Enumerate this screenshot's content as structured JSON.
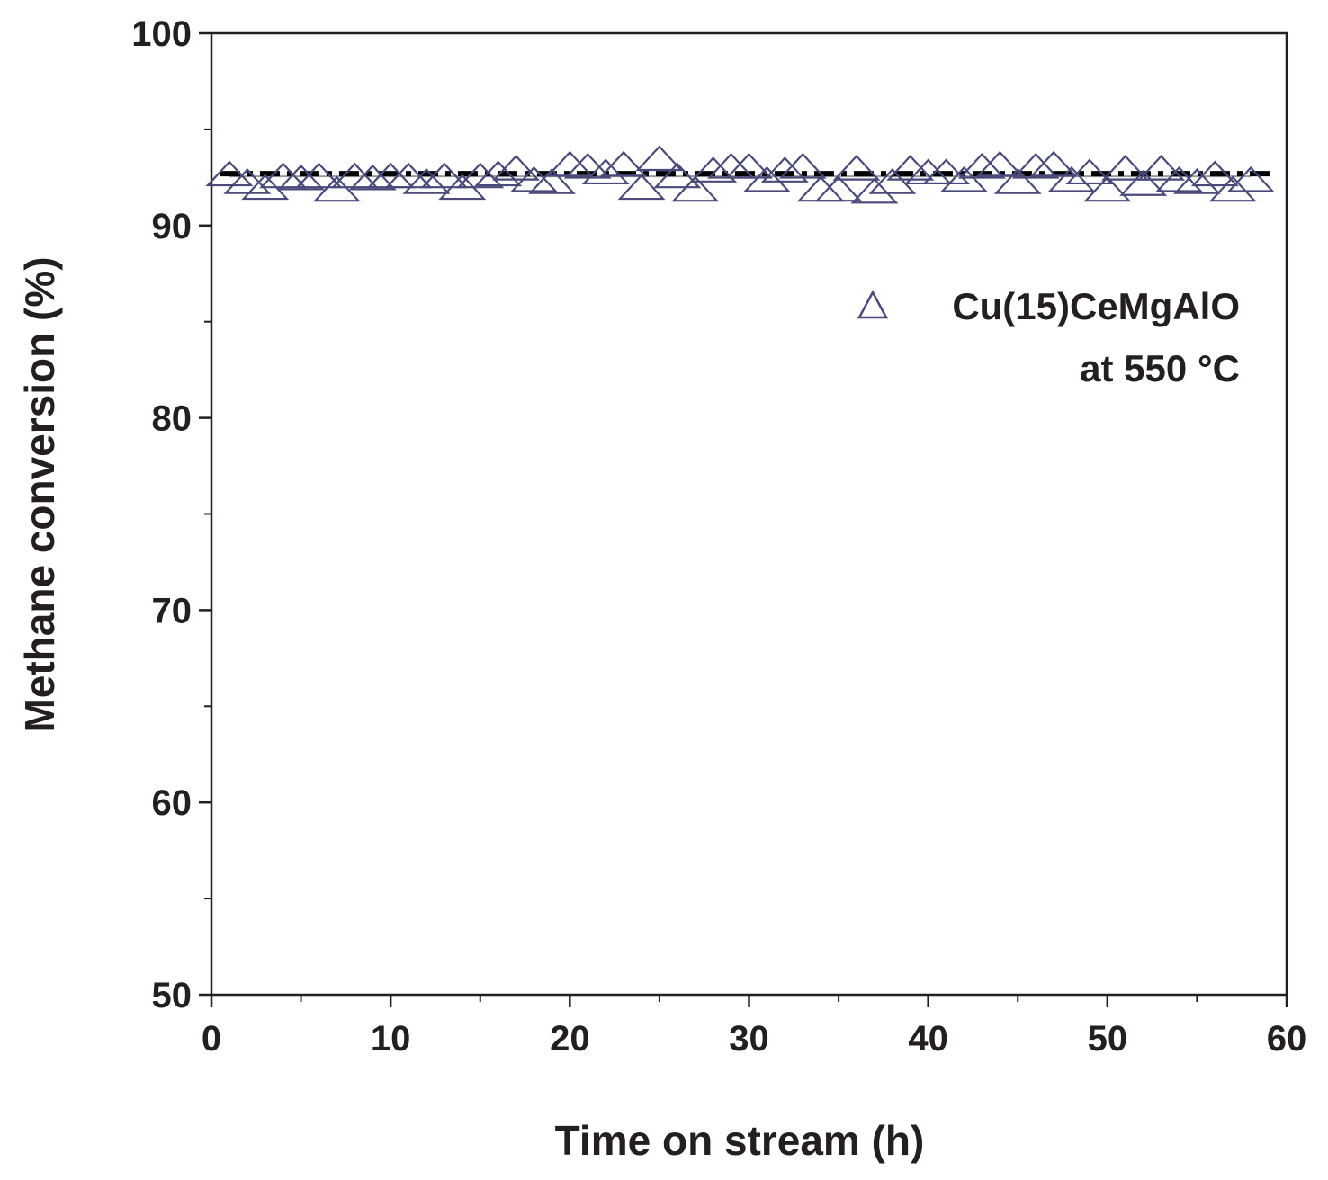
{
  "chart_data": {
    "type": "scatter",
    "xlabel": "Time on stream (h)",
    "ylabel": "Methane conversion (%)",
    "xlim": [
      0,
      60
    ],
    "ylim": [
      50,
      100
    ],
    "x_ticks": [
      "0",
      "10",
      "20",
      "30",
      "40",
      "50",
      "60"
    ],
    "y_ticks": [
      "50",
      "60",
      "70",
      "80",
      "90",
      "100"
    ],
    "grid": false,
    "legend": {
      "label": "Cu(15)CeMgAlO",
      "sublabel": "at 550 °C",
      "position": "top-right"
    },
    "series": [
      {
        "name": "Cu(15)CeMgAlO",
        "marker": "open-triangle",
        "color": "#4a4a7a",
        "x": [
          1,
          2,
          3,
          4,
          5,
          6,
          7,
          8,
          9,
          10,
          11,
          12,
          13,
          14,
          15,
          16,
          17,
          18,
          19,
          20,
          21,
          22,
          23,
          24,
          25,
          26,
          27,
          28,
          29,
          30,
          31,
          32,
          33,
          34,
          35,
          36,
          37,
          38,
          39,
          40,
          41,
          42,
          43,
          44,
          45,
          46,
          47,
          48,
          49,
          50,
          51,
          52,
          53,
          54,
          55,
          56,
          57,
          58
        ],
        "y": [
          92.7,
          92.3,
          92.0,
          92.6,
          92.5,
          92.6,
          91.9,
          92.6,
          92.5,
          92.6,
          92.6,
          92.3,
          92.6,
          92.0,
          92.6,
          92.7,
          93.0,
          92.4,
          92.3,
          93.2,
          93.1,
          92.8,
          93.2,
          92.0,
          93.5,
          92.6,
          91.9,
          92.9,
          93.1,
          93.1,
          92.4,
          92.9,
          93.1,
          91.9,
          91.9,
          93.0,
          91.8,
          92.3,
          93.0,
          92.8,
          92.8,
          92.4,
          93.1,
          93.2,
          92.3,
          93.1,
          93.2,
          92.4,
          92.8,
          91.9,
          93.0,
          92.2,
          93.0,
          92.4,
          92.3,
          92.7,
          91.9,
          92.4
        ]
      },
      {
        "name": "",
        "kind": "reference-line",
        "style": "dashed",
        "color": "#000000",
        "y": 92.7
      }
    ]
  }
}
